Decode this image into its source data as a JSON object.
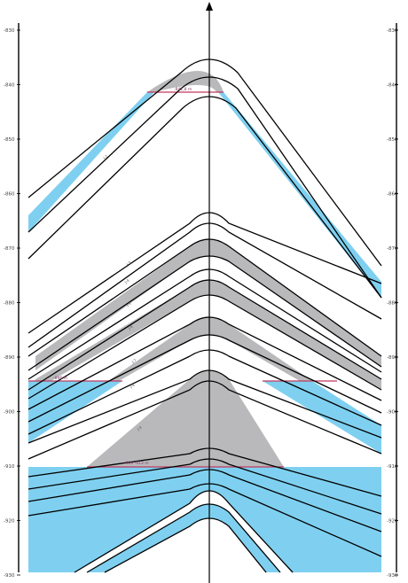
{
  "scale": {
    "left_labels": [
      "-830",
      "-840",
      "-850",
      "-860",
      "-870",
      "-880",
      "-890",
      "-900",
      "-910",
      "-920",
      "-930"
    ],
    "right_labels": [
      "-830",
      "-840",
      "-850",
      "-860",
      "-870",
      "-880",
      "-890",
      "-900",
      "-910",
      "-920",
      "-930"
    ]
  },
  "layer_labels": [
    "J-2",
    "J-3",
    "J-4",
    "J-5",
    "J-6",
    "J-7",
    "J-8",
    "J-9"
  ],
  "level_labels": {
    "upper": "-841,8 m",
    "middle": "-896 m",
    "lower": "-909 -913 m"
  },
  "colors": {
    "water": "#7fd0f0",
    "gas": "#b9b9bb",
    "contact": "#c0395e",
    "line": "#000000"
  }
}
